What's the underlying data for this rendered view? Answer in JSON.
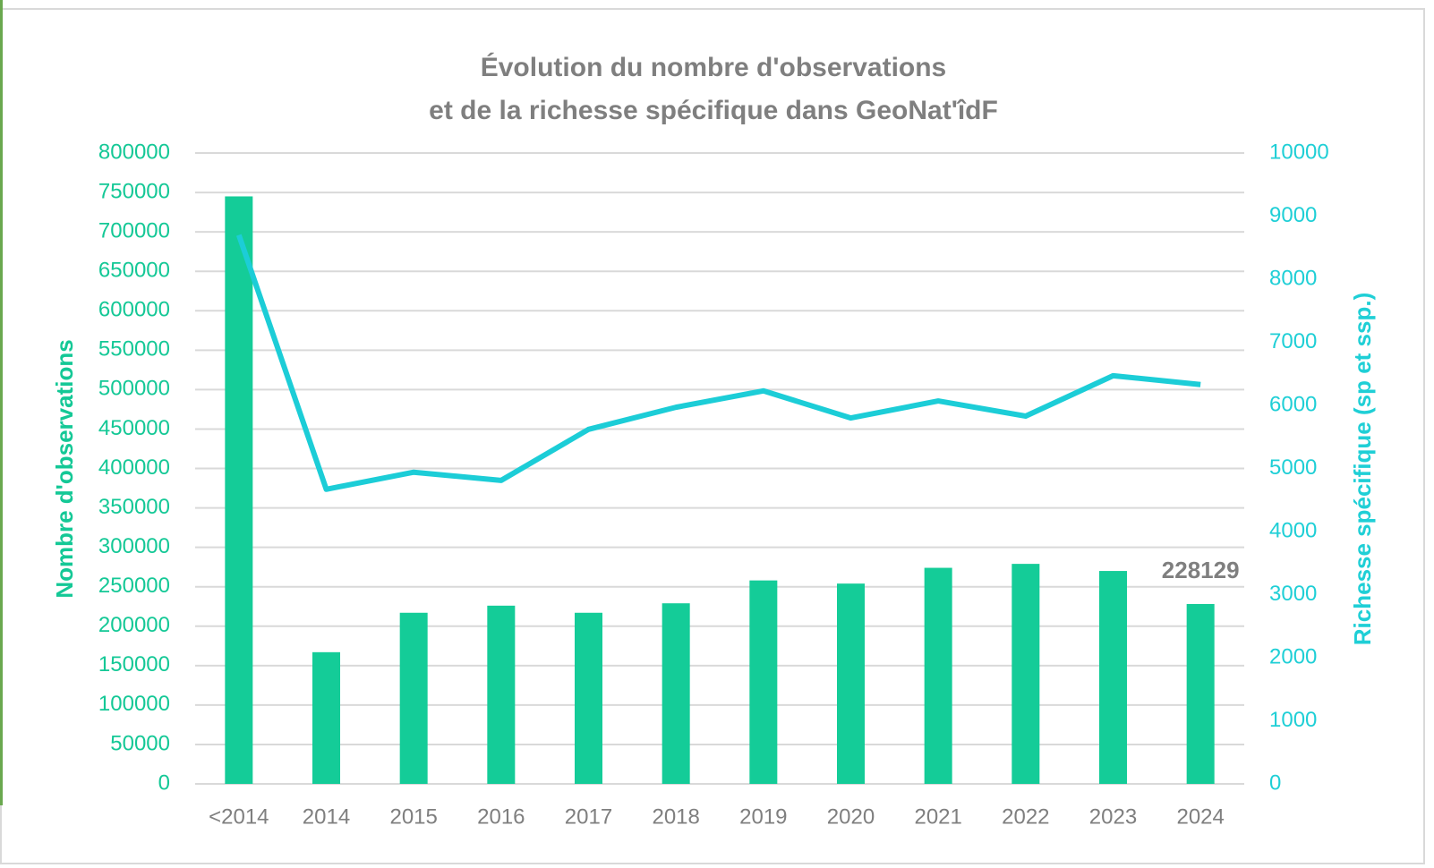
{
  "chart_data": {
    "type": "bar_line",
    "title": [
      "Évolution  du nombre  d'observations",
      "et de la richesse  spécifique  dans  GeoNat'îdF"
    ],
    "ylabel": "Nombre d'observations",
    "y2label": "Richesse spécifique (sp et ssp.)",
    "categories": [
      "<2014",
      "2014",
      "2015",
      "2016",
      "2017",
      "2018",
      "2019",
      "2020",
      "2021",
      "2022",
      "2023",
      "2024"
    ],
    "series": [
      {
        "type": "bar",
        "color": "#14cc98",
        "values": [
          745000,
          167000,
          217000,
          226000,
          217000,
          229000,
          258000,
          254000,
          274000,
          279000,
          270000,
          228129
        ],
        "value_labels": [
          null,
          null,
          null,
          null,
          null,
          null,
          null,
          null,
          null,
          null,
          null,
          "228129"
        ]
      },
      {
        "type": "line",
        "axis": "y2",
        "color": "#1ccdd7",
        "values": [
          8700,
          4670,
          4940,
          4810,
          5620,
          5970,
          6230,
          5800,
          6070,
          5830,
          6470,
          6330
        ]
      }
    ],
    "ylim": [
      0,
      800000
    ],
    "yticks": [
      0,
      50000,
      100000,
      150000,
      200000,
      250000,
      300000,
      350000,
      400000,
      450000,
      500000,
      550000,
      600000,
      650000,
      700000,
      750000,
      800000
    ],
    "y2lim": [
      0,
      10000
    ],
    "y2ticks": [
      0,
      1000,
      2000,
      3000,
      4000,
      5000,
      6000,
      7000,
      8000,
      9000,
      10000
    ],
    "grid": true,
    "ytick_color": "#14c896",
    "y2tick_color": "#1fcfd6"
  }
}
